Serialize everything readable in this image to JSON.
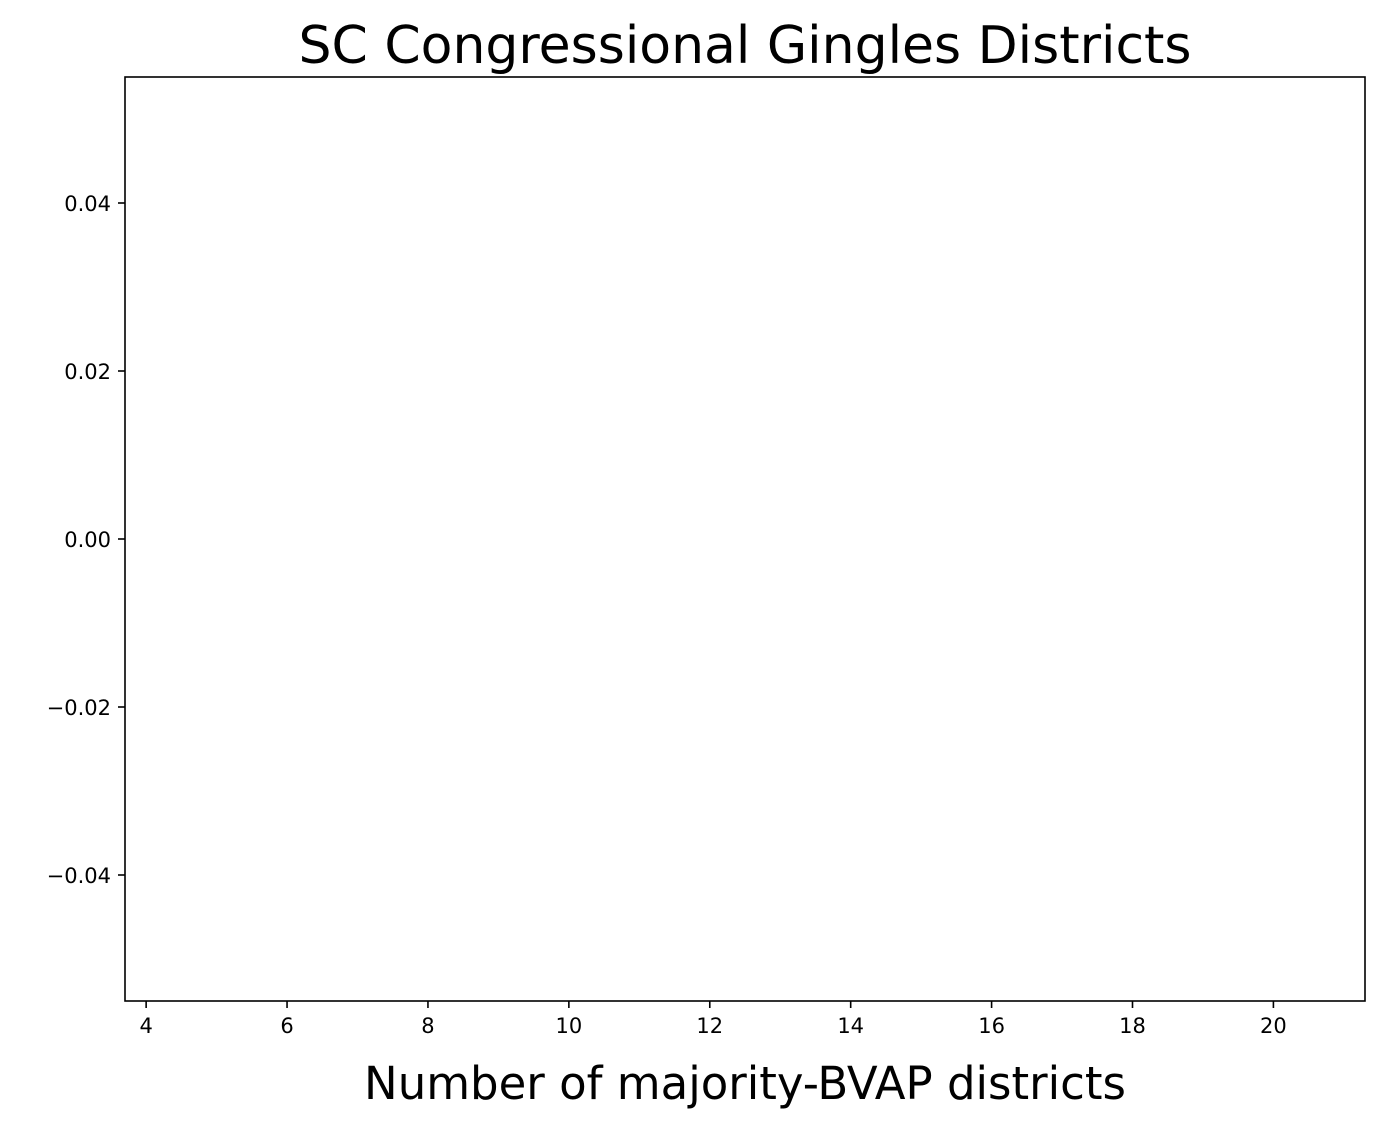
{
  "chart_data": {
    "type": "bar",
    "title": "SC Congressional Gingles Districts",
    "xlabel": "Number of majority-BVAP districts",
    "ylabel": "",
    "xlim": [
      3.7,
      21.3
    ],
    "ylim": [
      -0.055,
      0.055
    ],
    "xticks": [
      4,
      6,
      8,
      10,
      12,
      14,
      16,
      18,
      20
    ],
    "xtick_labels": [
      "4",
      "6",
      "8",
      "10",
      "12",
      "14",
      "16",
      "18",
      "20"
    ],
    "yticks": [
      0.04,
      0.02,
      0.0,
      -0.02,
      -0.04
    ],
    "ytick_labels": [
      "0.04",
      "0.02",
      "0.00",
      "−0.02",
      "−0.04"
    ],
    "series": [],
    "grid": false,
    "legend": "none"
  }
}
